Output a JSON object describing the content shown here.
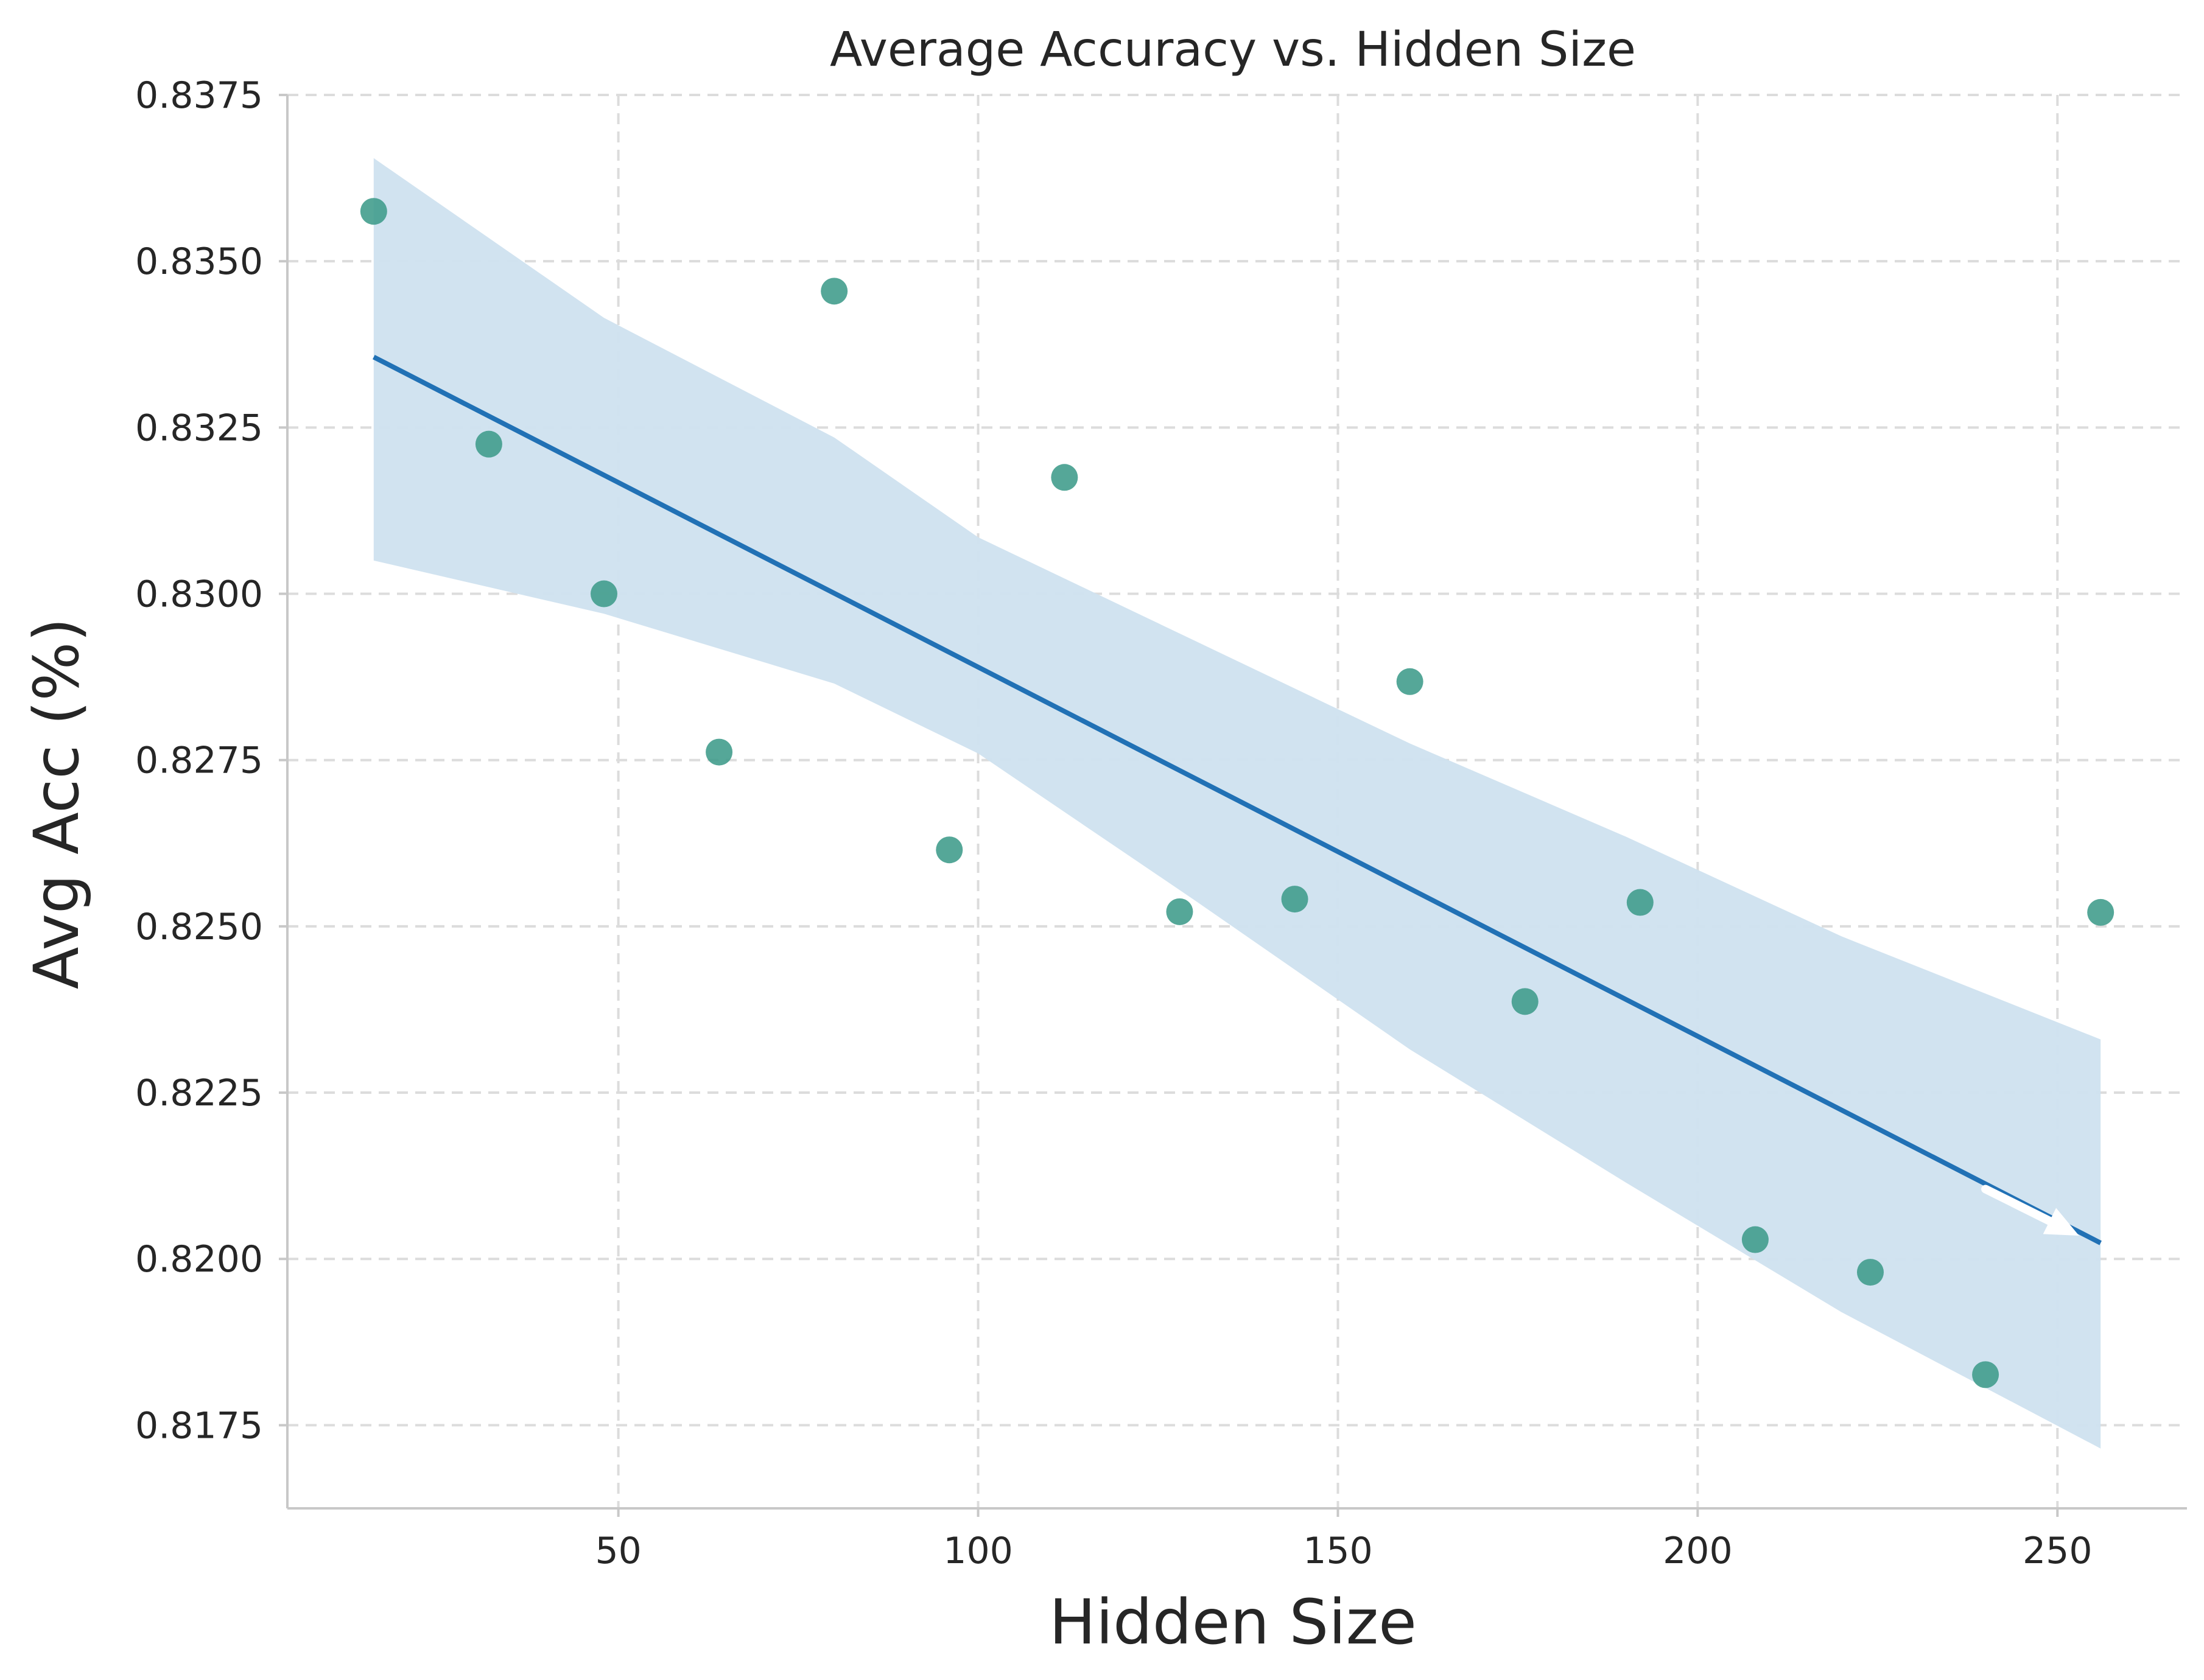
{
  "chart_data": {
    "type": "scatter",
    "title": "Average Accuracy vs. Hidden Size",
    "xlabel": "Hidden Size",
    "ylabel": "Avg Acc (%)",
    "xlim": [
      4,
      268
    ],
    "ylim": [
      0.81625,
      0.8375
    ],
    "x_ticks": [
      50,
      100,
      150,
      200,
      250
    ],
    "x_tick_labels": [
      "50",
      "100",
      "150",
      "200",
      "250"
    ],
    "y_ticks": [
      0.8175,
      0.82,
      0.8225,
      0.825,
      0.8275,
      0.83,
      0.8325,
      0.835,
      0.8375
    ],
    "y_tick_labels": [
      "0.8175",
      "0.8200",
      "0.8225",
      "0.8250",
      "0.8275",
      "0.8300",
      "0.8325",
      "0.8350",
      "0.8375"
    ],
    "grid": true,
    "series": [
      {
        "type": "scatter",
        "x": [
          16,
          32,
          48,
          64,
          80,
          96,
          112,
          128,
          144,
          160,
          176,
          192,
          208,
          224,
          240,
          256
        ],
        "y": [
          0.83575,
          0.83225,
          0.83,
          0.82762,
          0.83455,
          0.82615,
          0.83175,
          0.82522,
          0.82541,
          0.82868,
          0.82387,
          0.82536,
          0.82029,
          0.8198,
          0.81826,
          0.82521
        ]
      }
    ],
    "regression": {
      "x": [
        16,
        256
      ],
      "y": [
        0.83356,
        0.82024
      ],
      "ci_upper": [
        [
          16,
          0.83655
        ],
        [
          48,
          0.83415
        ],
        [
          80,
          0.83235
        ],
        [
          100,
          0.83085
        ],
        [
          130,
          0.8293
        ],
        [
          160,
          0.82775
        ],
        [
          190,
          0.82635
        ],
        [
          220,
          0.82485
        ],
        [
          256,
          0.8233
        ]
      ],
      "ci_lower": [
        [
          256,
          0.81715
        ],
        [
          220,
          0.8192
        ],
        [
          190,
          0.82115
        ],
        [
          160,
          0.82315
        ],
        [
          130,
          0.8254
        ],
        [
          100,
          0.8276
        ],
        [
          80,
          0.82865
        ],
        [
          48,
          0.8297
        ],
        [
          16,
          0.8305
        ]
      ]
    },
    "arrow": {
      "from": [
        240,
        0.82105
      ],
      "to": [
        253,
        0.82035
      ]
    },
    "colors": {
      "points": "#3d9b8a",
      "line": "#2171b5",
      "band": "#cfe1ef",
      "arrow": "#ffffff"
    }
  }
}
